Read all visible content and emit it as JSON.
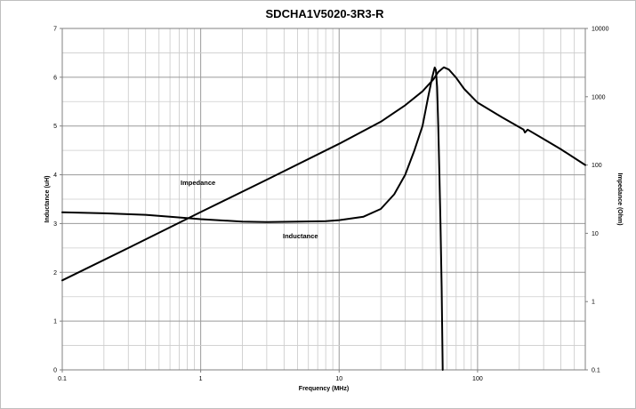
{
  "chart_data": {
    "type": "line",
    "title": "SDCHA1V5020-3R3-R",
    "xlabel": "Frequency (MHz)",
    "ylabel": "Inductance (uH)",
    "y2label": "Impedance (Ohm)",
    "xscale": "log",
    "xlim": [
      0.1,
      600
    ],
    "ylim": [
      0,
      7
    ],
    "y2scale": "log",
    "y2lim": [
      0.1,
      10000
    ],
    "grid": true,
    "x_ticks": [
      "0.1",
      "1",
      "10",
      "100"
    ],
    "y_ticks": [
      "0",
      "1",
      "2",
      "3",
      "4",
      "5",
      "6",
      "7"
    ],
    "y2_ticks": [
      "0.1",
      "1",
      "10",
      "100",
      "1000",
      "10000"
    ],
    "annotations": [
      "Impedance",
      "Inductance"
    ],
    "series": [
      {
        "name": "Impedance",
        "axis": "right",
        "color": "#000000",
        "points": [
          [
            0.1,
            2.05
          ],
          [
            0.3,
            6.1
          ],
          [
            1,
            20.5
          ],
          [
            3,
            61
          ],
          [
            10,
            205
          ],
          [
            20,
            430
          ],
          [
            30,
            750
          ],
          [
            40,
            1200
          ],
          [
            48,
            1800
          ],
          [
            52,
            2300
          ],
          [
            57,
            2700
          ],
          [
            62,
            2500
          ],
          [
            70,
            1900
          ],
          [
            80,
            1300
          ],
          [
            100,
            820
          ],
          [
            150,
            500
          ],
          [
            215,
            330
          ],
          [
            220,
            300
          ],
          [
            230,
            330
          ],
          [
            300,
            240
          ],
          [
            400,
            170
          ],
          [
            600,
            100
          ]
        ]
      },
      {
        "name": "Inductance",
        "axis": "left",
        "color": "#000000",
        "points": [
          [
            0.1,
            3.23
          ],
          [
            0.2,
            3.21
          ],
          [
            0.4,
            3.18
          ],
          [
            0.6,
            3.14
          ],
          [
            1,
            3.09
          ],
          [
            2,
            3.04
          ],
          [
            3,
            3.03
          ],
          [
            5,
            3.04
          ],
          [
            8,
            3.05
          ],
          [
            10,
            3.07
          ],
          [
            15,
            3.14
          ],
          [
            20,
            3.3
          ],
          [
            25,
            3.6
          ],
          [
            30,
            4.0
          ],
          [
            35,
            4.5
          ],
          [
            40,
            5.0
          ],
          [
            44,
            5.6
          ],
          [
            47,
            6.0
          ],
          [
            49,
            6.2
          ],
          [
            50,
            6.15
          ],
          [
            51,
            5.8
          ],
          [
            52,
            5.0
          ],
          [
            53,
            4.0
          ],
          [
            54,
            3.0
          ],
          [
            55,
            1.7
          ],
          [
            56,
            0.0
          ]
        ]
      }
    ]
  }
}
